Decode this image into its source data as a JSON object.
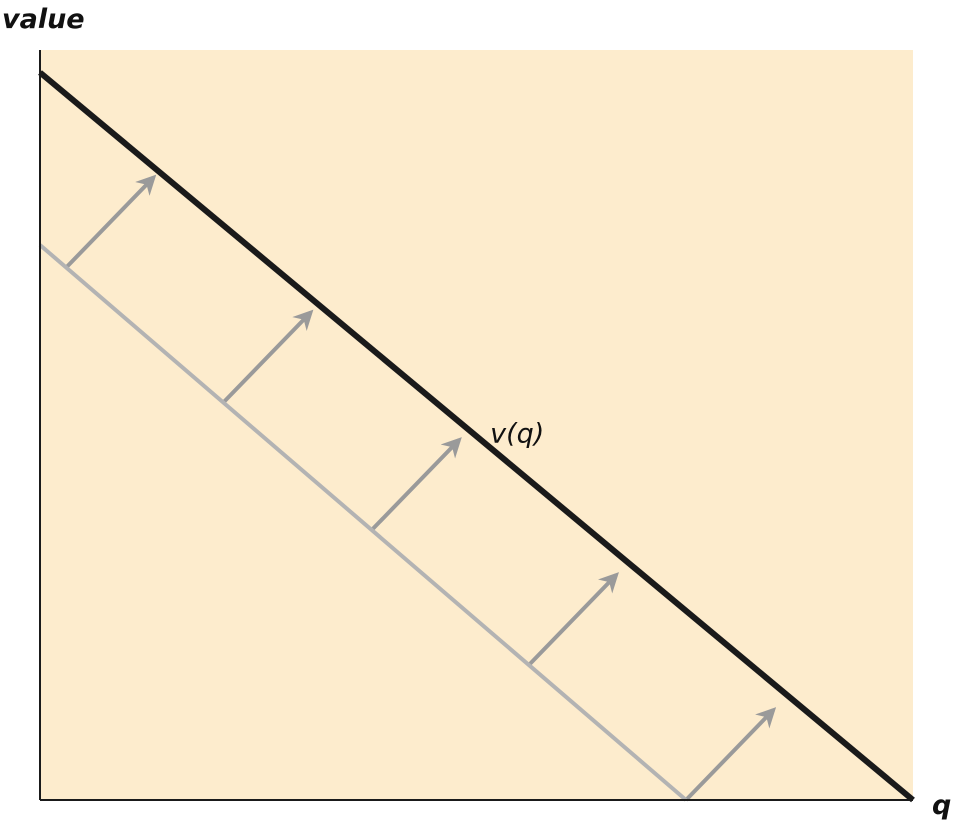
{
  "colors": {
    "plot_background": "#fdeccd",
    "axis": "#1a1a1a",
    "demand_line": "#1a1a1a",
    "shifted_line": "#b3b3b3",
    "arrow": "#9a9a9a"
  },
  "chart_data": {
    "type": "line",
    "title": "",
    "xlabel": "q",
    "ylabel": "value",
    "xlim": [
      0,
      100
    ],
    "ylim": [
      0,
      100
    ],
    "grid": false,
    "legend": "none",
    "ticks": "none",
    "series": [
      {
        "name": "v(q)",
        "color_key": "demand_line",
        "points": [
          [
            0,
            97
          ],
          [
            100,
            0
          ]
        ]
      },
      {
        "name": "",
        "color_key": "shifted_line",
        "points": [
          [
            0,
            74
          ],
          [
            74,
            0
          ]
        ]
      }
    ],
    "annotations": [
      {
        "type": "label",
        "text": "v(q)",
        "x": 55,
        "y": 49
      }
    ],
    "shift_arrows": {
      "direction": "outward",
      "from_points": [
        [
          3,
          71
        ],
        [
          21,
          53
        ],
        [
          38,
          36
        ],
        [
          56,
          18
        ],
        [
          74,
          0
        ]
      ],
      "delta": [
        10,
        12
      ]
    }
  }
}
